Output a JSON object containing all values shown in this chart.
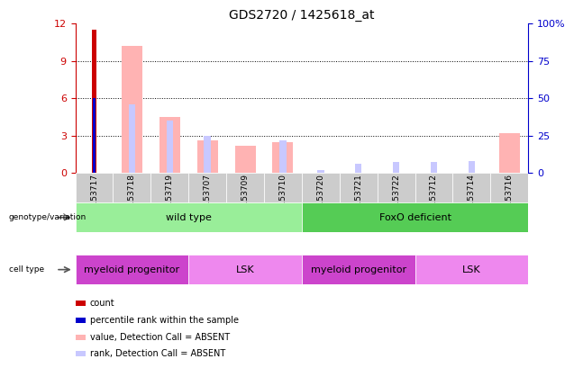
{
  "title": "GDS2720 / 1425618_at",
  "samples": [
    "GSM153717",
    "GSM153718",
    "GSM153719",
    "GSM153707",
    "GSM153709",
    "GSM153710",
    "GSM153720",
    "GSM153721",
    "GSM153722",
    "GSM153712",
    "GSM153714",
    "GSM153716"
  ],
  "count_values": [
    11.5,
    0,
    0,
    0,
    0,
    0,
    0,
    0,
    0,
    0,
    0,
    0
  ],
  "percentile_values": [
    6.0,
    0,
    0,
    0,
    0,
    0,
    0,
    0,
    0,
    0,
    0,
    0
  ],
  "absent_value_bars": [
    0,
    10.2,
    4.5,
    2.6,
    2.2,
    2.5,
    0,
    0,
    0,
    0,
    0,
    3.2
  ],
  "absent_rank_bars": [
    0,
    5.6,
    4.2,
    3.0,
    0,
    2.7,
    0.25,
    0.7,
    0.8,
    0.8,
    1.0,
    0
  ],
  "absent_rank_bars_pct": [
    0,
    46,
    35,
    25,
    0,
    22,
    2,
    6,
    7,
    7,
    8,
    0
  ],
  "ylim_left": [
    0,
    12
  ],
  "ylim_right": [
    0,
    100
  ],
  "yticks_left": [
    0,
    3,
    6,
    9,
    12
  ],
  "yticks_right": [
    0,
    25,
    50,
    75,
    100
  ],
  "yticklabels_right": [
    "0",
    "25",
    "50",
    "75",
    "100%"
  ],
  "left_axis_color": "#cc0000",
  "right_axis_color": "#0000cc",
  "count_color": "#cc0000",
  "percentile_color": "#0000cc",
  "absent_value_color": "#ffb3b3",
  "absent_rank_color": "#c8c8ff",
  "genotype_labels": [
    {
      "text": "wild type",
      "start": 0,
      "end": 6,
      "color": "#99ee99"
    },
    {
      "text": "FoxO deficient",
      "start": 6,
      "end": 12,
      "color": "#55cc55"
    }
  ],
  "cell_type_labels": [
    {
      "text": "myeloid progenitor",
      "start": 0,
      "end": 3,
      "color": "#cc44cc"
    },
    {
      "text": "LSK",
      "start": 3,
      "end": 6,
      "color": "#ee88ee"
    },
    {
      "text": "myeloid progenitor",
      "start": 6,
      "end": 9,
      "color": "#cc44cc"
    },
    {
      "text": "LSK",
      "start": 9,
      "end": 12,
      "color": "#ee88ee"
    }
  ],
  "legend_items": [
    {
      "label": "count",
      "color": "#cc0000"
    },
    {
      "label": "percentile rank within the sample",
      "color": "#0000cc"
    },
    {
      "label": "value, Detection Call = ABSENT",
      "color": "#ffb3b3"
    },
    {
      "label": "rank, Detection Call = ABSENT",
      "color": "#c8c8ff"
    }
  ],
  "background_color": "#ffffff",
  "tick_bg_color": "#cccccc",
  "grid_color": "#000000",
  "dotted_yticks": [
    3,
    6,
    9
  ]
}
